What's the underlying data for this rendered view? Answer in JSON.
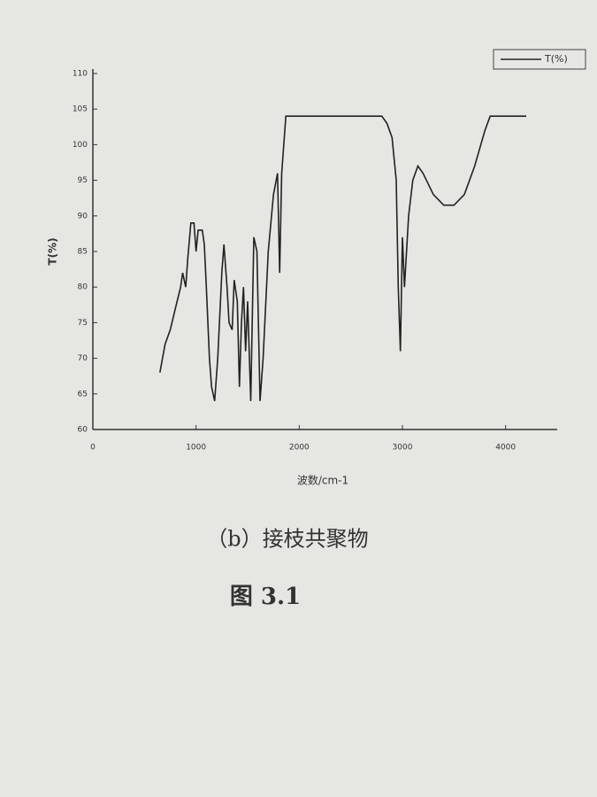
{
  "chart_data": {
    "type": "line",
    "x_label": "波数/cm-1",
    "y_label": "T(%)",
    "caption": "（b）接枝共聚物",
    "figure_label": "图 3.1",
    "x": [
      650,
      700,
      750,
      800,
      850,
      870,
      900,
      920,
      950,
      980,
      1000,
      1020,
      1060,
      1080,
      1100,
      1130,
      1150,
      1180,
      1210,
      1250,
      1270,
      1300,
      1320,
      1350,
      1370,
      1400,
      1420,
      1440,
      1460,
      1480,
      1500,
      1530,
      1560,
      1590,
      1620,
      1650,
      1700,
      1750,
      1790,
      1810,
      1830,
      1870,
      2000,
      2500,
      2800,
      2850,
      2900,
      2940,
      2960,
      2980,
      3000,
      3020,
      3060,
      3100,
      3150,
      3200,
      3300,
      3400,
      3500,
      3600,
      3700,
      3800,
      3850,
      4000,
      4200
    ],
    "series": [
      {
        "name": "T(%)",
        "color": "#222222",
        "values": [
          68,
          72,
          74,
          77,
          80,
          82,
          80,
          84,
          89,
          89,
          85,
          88,
          88,
          86,
          80,
          70,
          66,
          64,
          70,
          82,
          86,
          80,
          75,
          74,
          81,
          78,
          66,
          75,
          80,
          71,
          78,
          64,
          87,
          85,
          64,
          70,
          85,
          93,
          96,
          82,
          96,
          104,
          104,
          104,
          104,
          103,
          101,
          95,
          80,
          71,
          87,
          80,
          90,
          95,
          97,
          96,
          93,
          91.5,
          91.5,
          93,
          97,
          102,
          104,
          104,
          104
        ]
      }
    ],
    "xlim": [
      0,
      4500
    ],
    "ylim": [
      60,
      110
    ],
    "xticks": [
      0,
      1000,
      2000,
      3000,
      4000
    ],
    "yticks": [
      60,
      65,
      70,
      75,
      80,
      85,
      90,
      95,
      100,
      105,
      110
    ],
    "grid": false,
    "legend": "top-right"
  }
}
